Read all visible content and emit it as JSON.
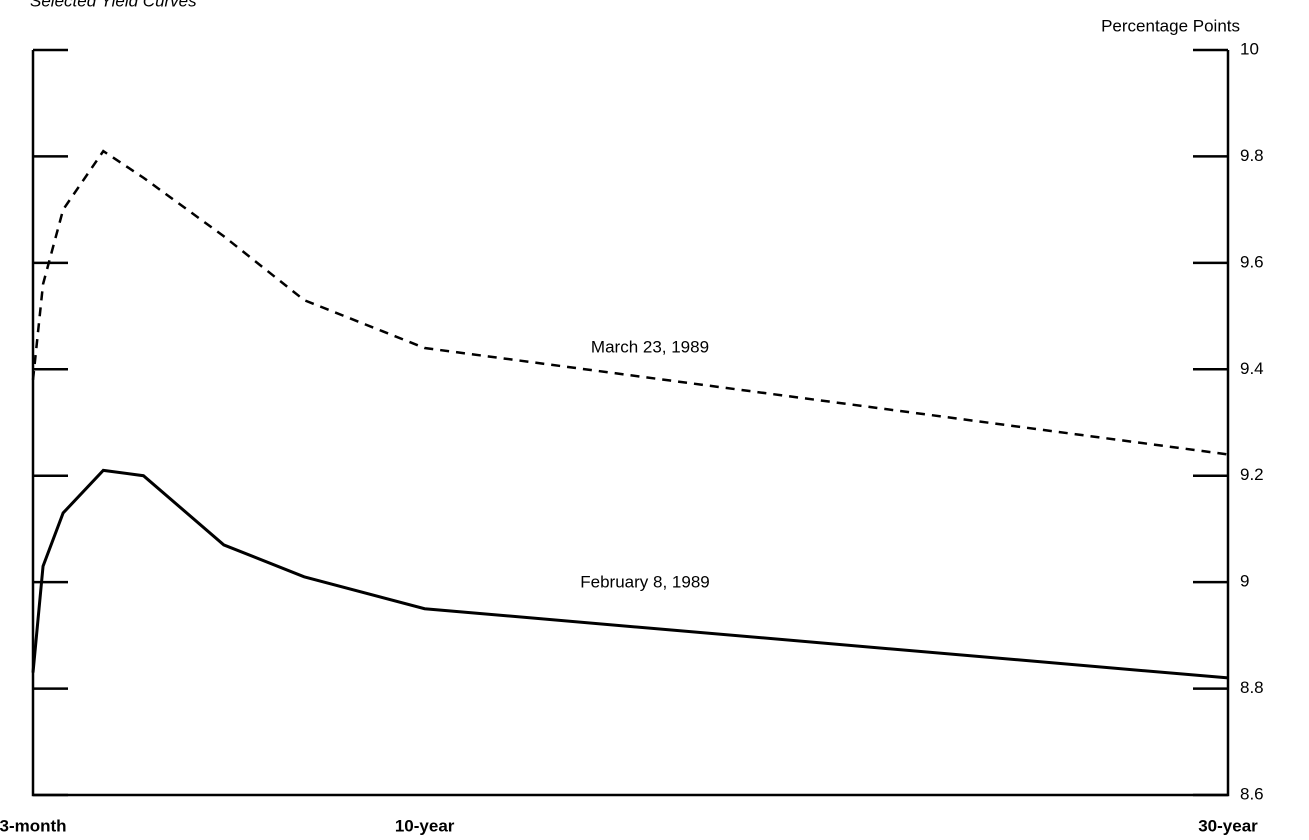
{
  "chart_data": {
    "type": "line",
    "title": "Selected Yield Curves",
    "y_label": "Percentage Points",
    "xlim": [
      0.25,
      30
    ],
    "xticks": [
      {
        "value": 0.25,
        "label": "3-month"
      },
      {
        "value": 10,
        "label": "10-year"
      },
      {
        "value": 30,
        "label": "30-year"
      }
    ],
    "ylim": [
      8.6,
      10
    ],
    "yticks": [
      8.6,
      8.8,
      9,
      9.2,
      9.4,
      9.6,
      9.8,
      10
    ],
    "x": [
      0.25,
      0.5,
      1,
      2,
      3,
      5,
      7,
      10,
      30
    ],
    "series": [
      {
        "name": "March 23, 1989",
        "color": "#000000",
        "dashed": true,
        "values": [
          9.38,
          9.56,
          9.7,
          9.81,
          9.76,
          9.65,
          9.53,
          9.44,
          9.24
        ]
      },
      {
        "name": "February 8, 1989",
        "color": "#000000",
        "dashed": false,
        "values": [
          8.83,
          9.03,
          9.13,
          9.21,
          9.2,
          9.07,
          9.01,
          8.95,
          8.82
        ]
      }
    ]
  }
}
